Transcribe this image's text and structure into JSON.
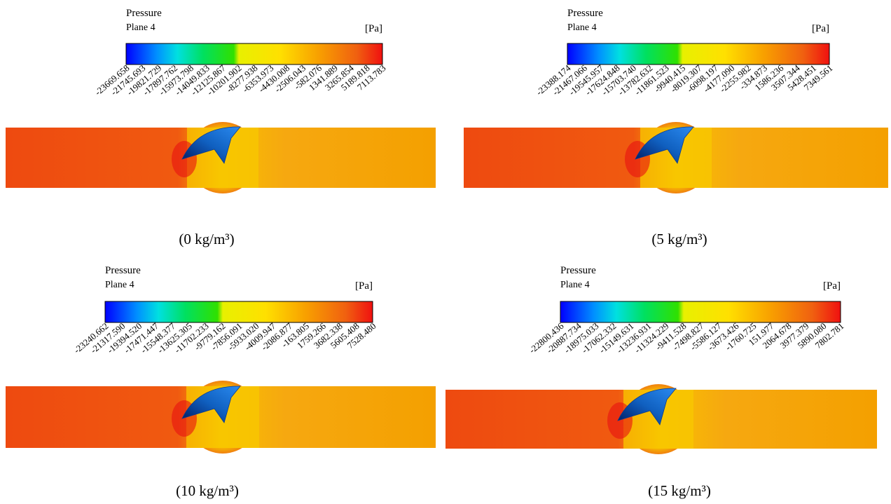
{
  "panels": [
    {
      "title": "Pressure",
      "subtitle": "Plane 4",
      "unit": "[Pa]",
      "caption": "(0 kg/m³)",
      "ticks": [
        "-23669.658",
        "-21745.693",
        "-19821.729",
        "-17897.762",
        "-15973.798",
        "-14049.833",
        "-12125.867",
        "-10201.902",
        "-8277.938",
        "-6353.973",
        "-4430.008",
        "-2506.043",
        "-582.076",
        "1341.889",
        "3265.854",
        "5189.818",
        "7113.783"
      ]
    },
    {
      "title": "Pressure",
      "subtitle": "Plane 4",
      "unit": "[Pa]",
      "caption": "(5 kg/m³)",
      "ticks": [
        "-23388.174",
        "-21467.066",
        "-19545.957",
        "-17624.848",
        "-15703.740",
        "-13782.632",
        "-11861.523",
        "-9940.415",
        "-8019.307",
        "-6098.197",
        "-4177.090",
        "-2255.982",
        "-334.873",
        "1586.236",
        "3507.344",
        "5428.451",
        "7349.561"
      ]
    },
    {
      "title": "Pressure",
      "subtitle": "Plane 4",
      "unit": "[Pa]",
      "caption": "(10 kg/m³)",
      "ticks": [
        "-23240.662",
        "-21317.590",
        "-19394.520",
        "-17471.447",
        "-15548.377",
        "-13625.305",
        "-11702.233",
        "-9779.162",
        "-7856.091",
        "-5933.020",
        "-4009.947",
        "-2086.877",
        "-163.805",
        "1759.266",
        "3682.338",
        "5605.408",
        "7528.480"
      ]
    },
    {
      "title": "Pressure",
      "subtitle": "Plane 4",
      "unit": "[Pa]",
      "caption": "(15 kg/m³)",
      "ticks": [
        "-22800.436",
        "-20887.734",
        "-18975.033",
        "-17062.332",
        "-15149.631",
        "-13236.931",
        "-11324.229",
        "-9411.528",
        "-7498.827",
        "-5586.127",
        "-3673.426",
        "-1760.725",
        "151.977",
        "2064.678",
        "3977.379",
        "5890.080",
        "7802.781"
      ]
    }
  ]
}
